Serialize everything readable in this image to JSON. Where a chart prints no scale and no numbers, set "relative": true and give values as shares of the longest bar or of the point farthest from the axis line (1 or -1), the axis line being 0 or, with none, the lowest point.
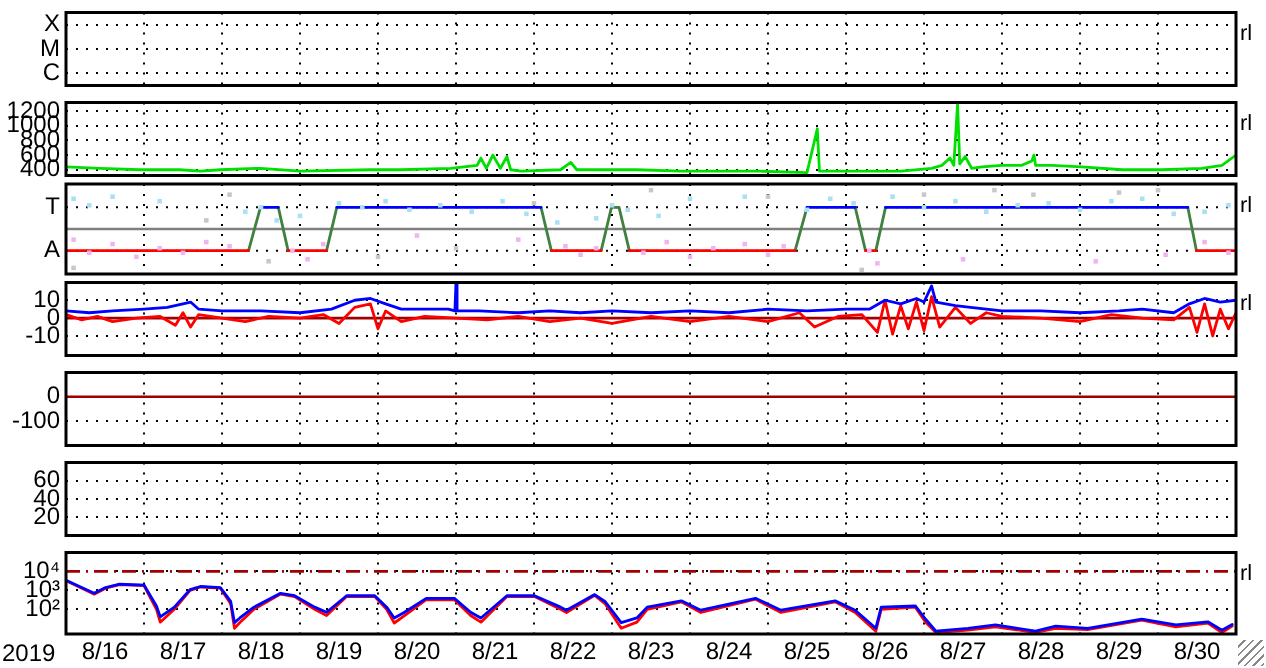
{
  "chart_data": [
    {
      "type": "heatmap",
      "categories": [
        null,
        null,
        null,
        null,
        null,
        null,
        null,
        null,
        null,
        null,
        null,
        null,
        null,
        null,
        null
      ],
      "y_categories": [
        "X",
        "M",
        "C"
      ],
      "cells": [
        [
          null,
          null,
          null,
          null,
          null,
          null,
          null,
          null,
          null,
          null,
          null,
          null,
          null,
          null,
          null
        ],
        [
          null,
          null,
          null,
          null,
          null,
          null,
          null,
          null,
          null,
          null,
          null,
          null,
          null,
          null,
          null
        ],
        [
          null,
          null,
          null,
          null,
          null,
          null,
          null,
          null,
          null,
          null,
          null,
          null,
          null,
          null,
          null
        ]
      ],
      "grid": true,
      "tick_labels": "y",
      "annotations": [
        "rl"
      ]
    },
    {
      "type": "line",
      "xlim": [
        "2019-08-16",
        "2019-08-31"
      ],
      "xticks": [
        {
          "value": "2019-08-17",
          "label": null
        },
        {
          "value": "2019-08-18",
          "label": null
        },
        {
          "value": "2019-08-19",
          "label": null
        },
        {
          "value": "2019-08-20",
          "label": null
        },
        {
          "value": "2019-08-21",
          "label": null
        },
        {
          "value": "2019-08-22",
          "label": null
        },
        {
          "value": "2019-08-23",
          "label": null
        },
        {
          "value": "2019-08-24",
          "label": null
        },
        {
          "value": "2019-08-25",
          "label": null
        },
        {
          "value": "2019-08-26",
          "label": null
        },
        {
          "value": "2019-08-27",
          "label": null
        },
        {
          "value": "2019-08-28",
          "label": null
        },
        {
          "value": "2019-08-29",
          "label": null
        },
        {
          "value": "2019-08-30",
          "label": null
        }
      ],
      "ylim": [
        320,
        1320
      ],
      "yticks": [
        1200,
        1000,
        800,
        600,
        400
      ],
      "grid": true,
      "tick_labels": "y",
      "annotations": [
        "rl"
      ],
      "series": [
        {
          "color": "#00e000",
          "x": [
            "2019-08-16T00:00",
            "2019-08-16T10:30",
            "2019-08-16T22:50",
            "2019-08-17T11:00",
            "2019-08-17T17:20",
            "2019-08-17T23:30",
            "2019-08-18T11:50",
            "2019-08-19T00:10",
            "2019-08-19T21:40",
            "2019-08-20T07:00",
            "2019-08-20T22:20",
            "2019-08-21T06:30",
            "2019-08-21T07:40",
            "2019-08-21T09:20",
            "2019-08-21T11:20",
            "2019-08-21T13:40",
            "2019-08-21T15:40",
            "2019-08-21T16:50",
            "2019-08-21T20:00",
            "2019-08-22T08:10",
            "2019-08-22T11:20",
            "2019-08-22T13:10",
            "2019-08-22T20:40",
            "2019-08-23T07:40",
            "2019-08-23T21:20",
            "2019-08-24T06:30",
            "2019-08-24T21:50",
            "2019-08-25T12:00",
            "2019-08-25T15:10",
            "2019-08-25T15:50",
            "2019-08-25T22:30",
            "2019-08-26T17:00",
            "2019-08-27T02:20",
            "2019-08-27T05:30",
            "2019-08-27T08:00",
            "2019-08-27T09:10",
            "2019-08-27T10:20",
            "2019-08-27T11:00",
            "2019-08-27T12:40",
            "2019-08-27T14:40",
            "2019-08-27T17:50",
            "2019-08-28T00:00",
            "2019-08-28T06:00",
            "2019-08-28T09:10",
            "2019-08-28T09:50",
            "2019-08-28T10:20",
            "2019-08-28T15:20",
            "2019-08-29T00:30",
            "2019-08-29T13:00",
            "2019-08-30T01:10",
            "2019-08-30T13:30",
            "2019-08-30T19:40",
            "2019-08-31T00:00"
          ],
          "values": [
            440,
            420,
            400,
            400,
            380,
            400,
            420,
            380,
            400,
            400,
            420,
            460,
            560,
            420,
            600,
            420,
            580,
            400,
            380,
            400,
            500,
            400,
            400,
            400,
            380,
            380,
            380,
            360,
            960,
            380,
            380,
            380,
            420,
            460,
            560,
            460,
            1300,
            480,
            580,
            420,
            440,
            460,
            460,
            520,
            600,
            460,
            460,
            440,
            400,
            400,
            420,
            460,
            600
          ]
        }
      ]
    },
    {
      "type": "line",
      "relative": true,
      "xlim": [
        "2019-08-16",
        "2019-08-31"
      ],
      "xticks": [
        {
          "value": "2019-08-17",
          "label": null
        },
        {
          "value": "2019-08-18",
          "label": null
        },
        {
          "value": "2019-08-19",
          "label": null
        },
        {
          "value": "2019-08-20",
          "label": null
        },
        {
          "value": "2019-08-21",
          "label": null
        },
        {
          "value": "2019-08-22",
          "label": null
        },
        {
          "value": "2019-08-23",
          "label": null
        },
        {
          "value": "2019-08-24",
          "label": null
        },
        {
          "value": "2019-08-25",
          "label": null
        },
        {
          "value": "2019-08-26",
          "label": null
        },
        {
          "value": "2019-08-27",
          "label": null
        },
        {
          "value": "2019-08-28",
          "label": null
        },
        {
          "value": "2019-08-29",
          "label": null
        },
        {
          "value": "2019-08-30",
          "label": null
        }
      ],
      "grid": true,
      "tick_labels": "y",
      "annotations": [
        "rl"
      ],
      "ref_lines": [
        {
          "axis": "y",
          "value": 0,
          "color": "#808080"
        },
        {
          "axis": "y",
          "value": 0.53,
          "label": "T",
          "color": "#000000",
          "line_style": "dotted"
        },
        {
          "axis": "y",
          "value": -0.53,
          "label": "A",
          "color": "#000000",
          "line_style": "dotted"
        }
      ],
      "series": [
        {
          "type": "scatter",
          "marker": "square",
          "color": "#c8c8c8",
          "x": [
            "2019-08-16T02:20",
            "2019-08-17T19:10",
            "2019-08-18T02:20",
            "2019-08-18T14:20",
            "2019-08-20T00:00",
            "2019-08-21T00:00",
            "2019-08-22T00:00",
            "2019-08-23T12:00",
            "2019-08-25T00:00",
            "2019-08-26T04:50",
            "2019-08-27T00:00",
            "2019-08-27T21:40",
            "2019-08-28T09:40",
            "2019-08-29T12:00",
            "2019-08-30T00:00"
          ],
          "values": [
            -0.95,
            0.21,
            0.84,
            -0.79,
            -0.68,
            -0.47,
            0.63,
            0.95,
            0.79,
            -1,
            0.84,
            0.95,
            0.84,
            0.89,
            0.95
          ]
        },
        {
          "type": "scatter",
          "marker": "square",
          "color": "#a8e0f4",
          "x": [
            "2019-08-16T02:20",
            "2019-08-16T07:10",
            "2019-08-16T14:20",
            "2019-08-17T04:50",
            "2019-08-18T07:10",
            "2019-08-18T12:00",
            "2019-08-18T16:50",
            "2019-08-19T00:00",
            "2019-08-19T12:00",
            "2019-08-19T19:10",
            "2019-08-20T02:20",
            "2019-08-20T09:40",
            "2019-08-20T19:10",
            "2019-08-21T04:50",
            "2019-08-21T14:20",
            "2019-08-21T21:40",
            "2019-08-22T07:10",
            "2019-08-22T19:10",
            "2019-08-23T00:00",
            "2019-08-23T04:50",
            "2019-08-23T14:20",
            "2019-08-24T00:00",
            "2019-08-24T16:50",
            "2019-08-25T12:00",
            "2019-08-25T19:10",
            "2019-08-26T02:20",
            "2019-08-26T14:20",
            "2019-08-27T00:00",
            "2019-08-27T09:40",
            "2019-08-27T19:10",
            "2019-08-28T04:50",
            "2019-08-28T14:20",
            "2019-08-29T00:00",
            "2019-08-29T09:40",
            "2019-08-29T19:10",
            "2019-08-30T04:50",
            "2019-08-30T14:20",
            "2019-08-30T21:40"
          ],
          "values": [
            0.74,
            0.58,
            0.79,
            0.68,
            0.42,
            0.53,
            0.21,
            0.32,
            0.63,
            0.53,
            0.68,
            0.47,
            0.58,
            0.42,
            0.68,
            0.37,
            0.16,
            0.26,
            0.58,
            0.47,
            0.32,
            0.74,
            0.79,
            0.47,
            0.74,
            0.63,
            0.79,
            0.53,
            0.68,
            0.42,
            0.58,
            0.63,
            0.47,
            0.68,
            0.74,
            0.37,
            0.42,
            0.58
          ]
        },
        {
          "type": "scatter",
          "marker": "square",
          "color": "#f0b4f0",
          "x": [
            "2019-08-16T02:20",
            "2019-08-16T07:10",
            "2019-08-16T14:20",
            "2019-08-16T21:40",
            "2019-08-17T04:50",
            "2019-08-17T12:00",
            "2019-08-17T19:10",
            "2019-08-18T02:20",
            "2019-08-18T21:40",
            "2019-08-19T02:20",
            "2019-08-19T07:10",
            "2019-08-20T12:00",
            "2019-08-21T19:10",
            "2019-08-22T09:40",
            "2019-08-22T14:20",
            "2019-08-22T19:10",
            "2019-08-23T09:40",
            "2019-08-23T16:50",
            "2019-08-24T00:00",
            "2019-08-24T07:10",
            "2019-08-24T16:50",
            "2019-08-25T00:00",
            "2019-08-25T04:50",
            "2019-08-26T07:10",
            "2019-08-26T09:40",
            "2019-08-27T12:00",
            "2019-08-29T04:50",
            "2019-08-30T02:20",
            "2019-08-30T14:20",
            "2019-08-30T21:40"
          ],
          "values": [
            -0.26,
            -0.58,
            -0.37,
            -0.68,
            -0.47,
            -0.58,
            -0.32,
            -0.42,
            -0.53,
            -0.74,
            -0.37,
            -0.16,
            -0.26,
            -0.42,
            -0.63,
            -0.47,
            -0.58,
            -0.32,
            -0.68,
            -0.47,
            -0.37,
            -0.63,
            -0.42,
            -0.53,
            -0.84,
            -0.74,
            -0.79,
            -0.63,
            -0.32,
            -0.58
          ]
        },
        {
          "color": "#ff0000",
          "x": [
            "2019-08-16T00:00",
            "2019-08-18T08:10",
            "2019-08-18T14:20",
            "2019-08-18T20:20",
            "2019-08-19T08:10",
            "2019-08-19T09:40",
            "2019-08-22T05:20",
            "2019-08-22T20:40",
            "2019-08-22T21:40",
            "2019-08-23T05:20",
            "2019-08-25T08:20",
            "2019-08-25T09:40",
            "2019-08-26T06:00",
            "2019-08-26T09:10",
            "2019-08-26T09:40",
            "2019-08-30T11:50",
            "2019-08-31T00:00"
          ],
          "values": [
            -0.53,
            -0.53,
            null,
            -0.53,
            -0.53,
            null,
            -0.53,
            -0.53,
            null,
            -0.53,
            -0.53,
            null,
            -0.53,
            -0.53,
            null,
            -0.53,
            -0.53
          ]
        },
        {
          "color": "#0000ff",
          "x": [
            "2019-08-18T11:50",
            "2019-08-18T17:20",
            "2019-08-19T00:00",
            "2019-08-19T11:20",
            "2019-08-22T02:10",
            "2019-08-22T12:00",
            "2019-08-25T12:00",
            "2019-08-26T02:50",
            "2019-08-26T07:10",
            "2019-08-26T12:10",
            "2019-08-30T09:10"
          ],
          "values": [
            0.53,
            0.53,
            null,
            0.53,
            0.53,
            null,
            0.53,
            0.53,
            null,
            0.53,
            0.53
          ]
        },
        {
          "color": "#408040",
          "x": [
            "2019-08-18T08:10",
            "2019-08-18T11:50",
            "2019-08-18T14:20",
            "2019-08-18T17:20",
            "2019-08-18T20:20",
            "2019-08-19T02:20",
            "2019-08-19T08:10",
            "2019-08-19T11:20",
            "2019-08-20T00:00",
            "2019-08-22T02:10",
            "2019-08-22T05:20",
            "2019-08-22T12:00",
            "2019-08-22T20:40",
            "2019-08-22T23:50",
            "2019-08-23T02:10",
            "2019-08-23T05:20",
            "2019-08-24T00:00",
            "2019-08-25T08:20",
            "2019-08-25T12:00",
            "2019-08-25T19:10",
            "2019-08-26T02:50",
            "2019-08-26T06:00",
            "2019-08-26T07:10",
            "2019-08-26T09:10",
            "2019-08-26T12:10",
            "2019-08-28T00:00",
            "2019-08-30T09:10",
            "2019-08-30T11:50"
          ],
          "values": [
            -0.53,
            0.53,
            null,
            0.53,
            -0.53,
            null,
            -0.53,
            0.53,
            null,
            0.53,
            -0.53,
            null,
            -0.53,
            0.53,
            0.53,
            -0.53,
            null,
            -0.53,
            0.53,
            null,
            0.53,
            -0.53,
            null,
            -0.53,
            0.53,
            null,
            0.53,
            -0.53
          ]
        }
      ]
    },
    {
      "type": "line",
      "xlim": [
        "2019-08-16",
        "2019-08-31"
      ],
      "xticks": [
        {
          "value": "2019-08-17",
          "label": null
        },
        {
          "value": "2019-08-18",
          "label": null
        },
        {
          "value": "2019-08-19",
          "label": null
        },
        {
          "value": "2019-08-20",
          "label": null
        },
        {
          "value": "2019-08-21",
          "label": null
        },
        {
          "value": "2019-08-22",
          "label": null
        },
        {
          "value": "2019-08-23",
          "label": null
        },
        {
          "value": "2019-08-24",
          "label": null
        },
        {
          "value": "2019-08-25",
          "label": null
        },
        {
          "value": "2019-08-26",
          "label": null
        },
        {
          "value": "2019-08-27",
          "label": null
        },
        {
          "value": "2019-08-28",
          "label": null
        },
        {
          "value": "2019-08-29",
          "label": null
        },
        {
          "value": "2019-08-30",
          "label": null
        }
      ],
      "ylim": [
        -21,
        20
      ],
      "yticks": [
        10,
        0,
        -10
      ],
      "grid": true,
      "tick_labels": "y",
      "annotations": [
        "rl"
      ],
      "ref_lines": [
        {
          "axis": "y",
          "value": 0,
          "color": "#a00000"
        }
      ],
      "series": [
        {
          "color": "#0000ff",
          "x": [
            "2019-08-16T00:00",
            "2019-08-16T07:10",
            "2019-08-16T14:20",
            "2019-08-17T00:00",
            "2019-08-17T07:10",
            "2019-08-17T12:00",
            "2019-08-17T14:20",
            "2019-08-17T16:50",
            "2019-08-18T00:00",
            "2019-08-18T12:00",
            "2019-08-19T00:00",
            "2019-08-19T09:40",
            "2019-08-19T16:50",
            "2019-08-19T21:40",
            "2019-08-20T02:20",
            "2019-08-20T07:10",
            "2019-08-20T14:20",
            "2019-08-20T21:40",
            "2019-08-20T23:40",
            "2019-08-21T00:00",
            "2019-08-21T00:20",
            "2019-08-21T07:10",
            "2019-08-21T19:10",
            "2019-08-22T04:50",
            "2019-08-22T14:20",
            "2019-08-23T00:00",
            "2019-08-23T12:00",
            "2019-08-24T00:00",
            "2019-08-24T12:00",
            "2019-08-25T00:00",
            "2019-08-25T12:00",
            "2019-08-26T00:00",
            "2019-08-26T07:10",
            "2019-08-26T12:00",
            "2019-08-26T16:50",
            "2019-08-26T21:40",
            "2019-08-27T00:00",
            "2019-08-27T02:20",
            "2019-08-27T03:40",
            "2019-08-27T09:40",
            "2019-08-27T14:20",
            "2019-08-28T00:00",
            "2019-08-28T12:00",
            "2019-08-29T00:00",
            "2019-08-29T12:00",
            "2019-08-29T19:10",
            "2019-08-30T04:50",
            "2019-08-30T09:40",
            "2019-08-30T14:20",
            "2019-08-30T19:10",
            "2019-08-31T00:00"
          ],
          "values": [
            4,
            3,
            4,
            5,
            6,
            8,
            9,
            5,
            4,
            4,
            3,
            5,
            10,
            11,
            8,
            5,
            5,
            5,
            4,
            20,
            4,
            4,
            3,
            4,
            3,
            4,
            3,
            4,
            3,
            5,
            4,
            5,
            5,
            10,
            8,
            11,
            9,
            18,
            9,
            7,
            6,
            4,
            4,
            3,
            4,
            5,
            3,
            8,
            11,
            9,
            10
          ]
        },
        {
          "color": "#ff0000",
          "x": [
            "2019-08-16T00:00",
            "2019-08-16T04:50",
            "2019-08-16T09:40",
            "2019-08-16T14:20",
            "2019-08-16T21:40",
            "2019-08-17T04:50",
            "2019-08-17T09:40",
            "2019-08-17T12:00",
            "2019-08-17T14:20",
            "2019-08-17T16:50",
            "2019-08-18T00:00",
            "2019-08-18T07:10",
            "2019-08-18T14:20",
            "2019-08-19T00:00",
            "2019-08-19T07:10",
            "2019-08-19T12:00",
            "2019-08-19T16:50",
            "2019-08-19T21:40",
            "2019-08-20T00:00",
            "2019-08-20T02:20",
            "2019-08-20T07:10",
            "2019-08-20T14:20",
            "2019-08-21T00:00",
            "2019-08-21T09:40",
            "2019-08-21T19:10",
            "2019-08-22T04:50",
            "2019-08-22T14:20",
            "2019-08-23T00:00",
            "2019-08-23T12:00",
            "2019-08-24T00:00",
            "2019-08-24T12:00",
            "2019-08-25T00:00",
            "2019-08-25T09:40",
            "2019-08-25T14:20",
            "2019-08-25T21:40",
            "2019-08-26T04:50",
            "2019-08-26T09:40",
            "2019-08-26T12:00",
            "2019-08-26T14:20",
            "2019-08-26T16:50",
            "2019-08-26T19:10",
            "2019-08-26T21:40",
            "2019-08-27T00:00",
            "2019-08-27T02:20",
            "2019-08-27T04:50",
            "2019-08-27T09:40",
            "2019-08-27T14:20",
            "2019-08-27T19:10",
            "2019-08-28T00:00",
            "2019-08-28T12:00",
            "2019-08-29T00:00",
            "2019-08-29T09:40",
            "2019-08-29T19:10",
            "2019-08-30T04:50",
            "2019-08-30T09:40",
            "2019-08-30T12:00",
            "2019-08-30T14:20",
            "2019-08-30T16:50",
            "2019-08-30T19:10",
            "2019-08-30T21:40",
            "2019-08-31T00:00"
          ],
          "values": [
            2,
            -1,
            1,
            -2,
            0,
            1,
            -4,
            3,
            -5,
            2,
            0,
            -2,
            1,
            0,
            2,
            -3,
            6,
            8,
            -6,
            4,
            -2,
            1,
            0,
            -1,
            1,
            -2,
            0,
            -3,
            1,
            -2,
            1,
            -2,
            3,
            -5,
            1,
            2,
            -8,
            10,
            -9,
            7,
            -6,
            9,
            -7,
            12,
            -5,
            6,
            -3,
            3,
            1,
            0,
            -2,
            2,
            0,
            -1,
            6,
            -8,
            8,
            -10,
            5,
            -6,
            3
          ]
        }
      ]
    },
    {
      "type": "line",
      "xlim": [
        "2019-08-16",
        "2019-08-31"
      ],
      "xticks": [
        {
          "value": "2019-08-17",
          "label": null
        },
        {
          "value": "2019-08-18",
          "label": null
        },
        {
          "value": "2019-08-19",
          "label": null
        },
        {
          "value": "2019-08-20",
          "label": null
        },
        {
          "value": "2019-08-21",
          "label": null
        },
        {
          "value": "2019-08-22",
          "label": null
        },
        {
          "value": "2019-08-23",
          "label": null
        },
        {
          "value": "2019-08-24",
          "label": null
        },
        {
          "value": "2019-08-25",
          "label": null
        },
        {
          "value": "2019-08-26",
          "label": null
        },
        {
          "value": "2019-08-27",
          "label": null
        },
        {
          "value": "2019-08-28",
          "label": null
        },
        {
          "value": "2019-08-29",
          "label": null
        },
        {
          "value": "2019-08-30",
          "label": null
        }
      ],
      "ylim": [
        -200,
        100
      ],
      "yticks": [
        0,
        -100
      ],
      "grid": true,
      "tick_labels": "y",
      "ref_lines": [
        {
          "axis": "y",
          "value": 0,
          "color": "#a00000"
        }
      ]
    },
    {
      "type": "line",
      "xlim": [
        "2019-08-16",
        "2019-08-31"
      ],
      "xticks": [
        {
          "value": "2019-08-17",
          "label": null
        },
        {
          "value": "2019-08-18",
          "label": null
        },
        {
          "value": "2019-08-19",
          "label": null
        },
        {
          "value": "2019-08-20",
          "label": null
        },
        {
          "value": "2019-08-21",
          "label": null
        },
        {
          "value": "2019-08-22",
          "label": null
        },
        {
          "value": "2019-08-23",
          "label": null
        },
        {
          "value": "2019-08-24",
          "label": null
        },
        {
          "value": "2019-08-25",
          "label": null
        },
        {
          "value": "2019-08-26",
          "label": null
        },
        {
          "value": "2019-08-27",
          "label": null
        },
        {
          "value": "2019-08-28",
          "label": null
        },
        {
          "value": "2019-08-29",
          "label": null
        },
        {
          "value": "2019-08-30",
          "label": null
        }
      ],
      "ylim": [
        0,
        80
      ],
      "yticks": [
        60,
        40,
        20
      ],
      "grid": true,
      "tick_labels": "y"
    },
    {
      "type": "line",
      "xlabel": "2019",
      "xlim": [
        "2019-08-16",
        "2019-08-31"
      ],
      "xticks": [
        {
          "value": "2019-08-16T12:00",
          "label": "8/16"
        },
        {
          "value": "2019-08-17",
          "label": null
        },
        {
          "value": "2019-08-17T12:00",
          "label": "8/17"
        },
        {
          "value": "2019-08-18",
          "label": null
        },
        {
          "value": "2019-08-18T12:00",
          "label": "8/18"
        },
        {
          "value": "2019-08-19",
          "label": null
        },
        {
          "value": "2019-08-19T12:00",
          "label": "8/19"
        },
        {
          "value": "2019-08-20",
          "label": null
        },
        {
          "value": "2019-08-20T12:00",
          "label": "8/20"
        },
        {
          "value": "2019-08-21",
          "label": null
        },
        {
          "value": "2019-08-21T12:00",
          "label": "8/21"
        },
        {
          "value": "2019-08-22",
          "label": null
        },
        {
          "value": "2019-08-22T12:00",
          "label": "8/22"
        },
        {
          "value": "2019-08-23",
          "label": null
        },
        {
          "value": "2019-08-23T12:00",
          "label": "8/23"
        },
        {
          "value": "2019-08-24",
          "label": null
        },
        {
          "value": "2019-08-24T12:00",
          "label": "8/24"
        },
        {
          "value": "2019-08-25",
          "label": null
        },
        {
          "value": "2019-08-25T12:00",
          "label": "8/25"
        },
        {
          "value": "2019-08-26",
          "label": null
        },
        {
          "value": "2019-08-26T12:00",
          "label": "8/26"
        },
        {
          "value": "2019-08-27",
          "label": null
        },
        {
          "value": "2019-08-27T12:00",
          "label": "8/27"
        },
        {
          "value": "2019-08-28",
          "label": null
        },
        {
          "value": "2019-08-28T12:00",
          "label": "8/28"
        },
        {
          "value": "2019-08-29",
          "label": null
        },
        {
          "value": "2019-08-29T12:00",
          "label": "8/29"
        },
        {
          "value": "2019-08-30",
          "label": null
        },
        {
          "value": "2019-08-30T12:00",
          "label": "8/30"
        }
      ],
      "ylim": [
        5,
        100000
      ],
      "yticks": [
        {
          "value": 10000,
          "label": "10⁴"
        },
        {
          "value": 1000,
          "label": "10³"
        },
        {
          "value": 100,
          "label": "10²"
        }
      ],
      "log": true,
      "grid": true,
      "annotations": [
        "rl"
      ],
      "ref_lines": [
        {
          "axis": "y",
          "value": 10000,
          "color": "#a00000",
          "line_style": "dashed"
        }
      ],
      "x": [
        "2019-08-16T00:00",
        "2019-08-16T06:10",
        "2019-08-16T08:40",
        "2019-08-16T12:10",
        "2019-08-16T16:30",
        "2019-08-17T00:00",
        "2019-08-17T03:50",
        "2019-08-17T05:00",
        "2019-08-17T09:20",
        "2019-08-17T14:10",
        "2019-08-17T17:20",
        "2019-08-17T23:30",
        "2019-08-18T02:40",
        "2019-08-18T03:50",
        "2019-08-18T05:30",
        "2019-08-18T09:50",
        "2019-08-18T18:00",
        "2019-08-18T22:20",
        "2019-08-19T04:30",
        "2019-08-19T08:10",
        "2019-08-19T14:20",
        "2019-08-19T23:00",
        "2019-08-20T02:40",
        "2019-08-20T05:00",
        "2019-08-20T08:10",
        "2019-08-20T14:50",
        "2019-08-20T23:30",
        "2019-08-21T04:30",
        "2019-08-21T07:40",
        "2019-08-21T15:40",
        "2019-08-22T00:10",
        "2019-08-22T08:10",
        "2019-08-22T10:00",
        "2019-08-22T18:40",
        "2019-08-22T21:50",
        "2019-08-23T02:50",
        "2019-08-23T07:40",
        "2019-08-23T10:50",
        "2019-08-23T21:20",
        "2019-08-24T03:20",
        "2019-08-24T20:10",
        "2019-08-25T04:00",
        "2019-08-25T20:40",
        "2019-08-26T02:50",
        "2019-08-26T09:10",
        "2019-08-26T10:50",
        "2019-08-26T21:20",
        "2019-08-27T00:30",
        "2019-08-27T03:40",
        "2019-08-27T13:30",
        "2019-08-27T22:00",
        "2019-08-28T10:20",
        "2019-08-28T16:30",
        "2019-08-29T02:20",
        "2019-08-29T19:00",
        "2019-08-30T05:30",
        "2019-08-30T15:20",
        "2019-08-30T19:40",
        "2019-08-30T22:50"
      ],
      "series": [
        {
          "color": "#0000ff",
          "values": [
            3400,
            1100,
            700,
            1400,
            2100,
            1900,
            150,
            40,
            130,
            1100,
            1600,
            1400,
            260,
            20,
            35,
            130,
            700,
            520,
            130,
            70,
            520,
            520,
            130,
            35,
            70,
            380,
            380,
            70,
            35,
            520,
            520,
            130,
            90,
            600,
            260,
            20,
            35,
            130,
            280,
            90,
            380,
            90,
            280,
            90,
            10,
            130,
            150,
            30,
            7,
            10,
            15,
            7,
            13,
            10,
            30,
            15,
            22,
            8,
            16
          ]
        },
        {
          "color": "#ff0000",
          "values": [
            3200,
            1000,
            630,
            1300,
            2000,
            1800,
            100,
            21,
            100,
            1000,
            1500,
            1300,
            200,
            10,
            20,
            100,
            630,
            470,
            100,
            47,
            470,
            470,
            100,
            19,
            47,
            320,
            320,
            47,
            21,
            470,
            470,
            100,
            68,
            540,
            200,
            10,
            21,
            100,
            250,
            68,
            340,
            68,
            250,
            68,
            7,
            100,
            130,
            21,
            6,
            8,
            12,
            6,
            10,
            8.5,
            27,
            12,
            19,
            6,
            13
          ]
        }
      ]
    }
  ]
}
